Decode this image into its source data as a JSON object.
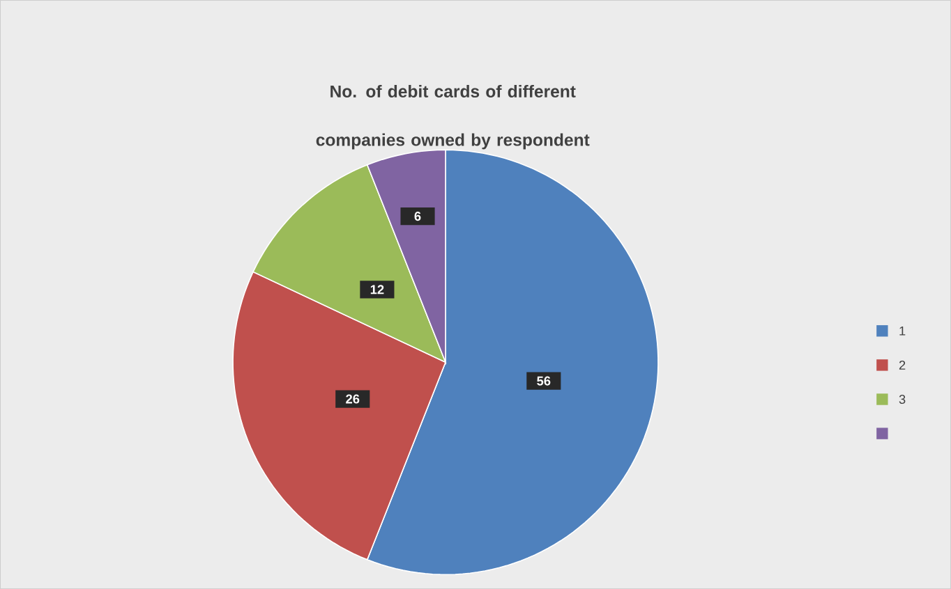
{
  "chart_data": {
    "type": "pie",
    "title": "No. of debit cards of different companies owned by respondent",
    "categories": [
      "1",
      "2",
      "3",
      null
    ],
    "values": [
      56,
      26,
      12,
      6
    ],
    "colors": [
      "#4f81bd",
      "#c0504d",
      "#9bbb59",
      "#8064a2"
    ],
    "data_labels": true,
    "legend": "right"
  }
}
